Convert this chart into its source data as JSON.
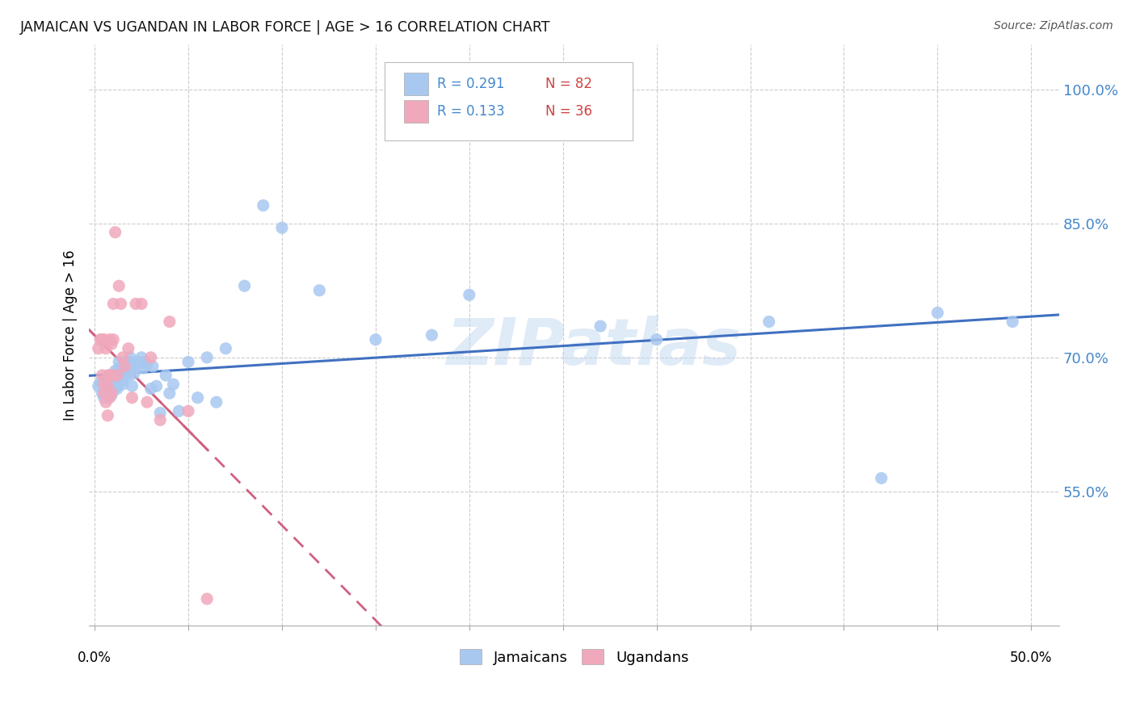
{
  "title": "JAMAICAN VS UGANDAN IN LABOR FORCE | AGE > 16 CORRELATION CHART",
  "source": "Source: ZipAtlas.com",
  "ylabel": "In Labor Force | Age > 16",
  "watermark": "ZIPatlas",
  "legend_r1": "R = 0.291",
  "legend_n1": "N = 82",
  "legend_r2": "R = 0.133",
  "legend_n2": "N = 36",
  "blue_color": "#a8c8f0",
  "pink_color": "#f0a8bc",
  "blue_line_color": "#4070c0",
  "pink_line_color": "#d06080",
  "pink_line_dash": "solid",
  "ymin": 0.4,
  "ymax": 1.05,
  "xmin": -0.003,
  "xmax": 0.515,
  "ytick_vals": [
    0.55,
    0.7,
    0.85,
    1.0
  ],
  "ytick_labels": [
    "55.0%",
    "70.0%",
    "85.0%",
    "100.0%"
  ],
  "xtick_vals": [
    0.0,
    0.05,
    0.1,
    0.15,
    0.2,
    0.25,
    0.3,
    0.35,
    0.4,
    0.45,
    0.5
  ],
  "jamaicans_x": [
    0.002,
    0.003,
    0.004,
    0.005,
    0.005,
    0.005,
    0.006,
    0.006,
    0.006,
    0.007,
    0.007,
    0.007,
    0.007,
    0.007,
    0.008,
    0.008,
    0.008,
    0.009,
    0.009,
    0.009,
    0.009,
    0.009,
    0.009,
    0.01,
    0.01,
    0.01,
    0.01,
    0.011,
    0.011,
    0.012,
    0.012,
    0.012,
    0.013,
    0.013,
    0.014,
    0.014,
    0.015,
    0.015,
    0.016,
    0.016,
    0.017,
    0.017,
    0.018,
    0.018,
    0.018,
    0.019,
    0.019,
    0.019,
    0.02,
    0.021,
    0.022,
    0.023,
    0.025,
    0.026,
    0.027,
    0.028,
    0.03,
    0.031,
    0.033,
    0.035,
    0.038,
    0.04,
    0.042,
    0.045,
    0.05,
    0.055,
    0.06,
    0.065,
    0.07,
    0.08,
    0.09,
    0.1,
    0.12,
    0.15,
    0.18,
    0.2,
    0.27,
    0.3,
    0.36,
    0.42,
    0.45,
    0.49
  ],
  "jamaicans_y": [
    0.668,
    0.672,
    0.66,
    0.668,
    0.66,
    0.655,
    0.67,
    0.675,
    0.662,
    0.668,
    0.665,
    0.67,
    0.66,
    0.675,
    0.672,
    0.668,
    0.678,
    0.67,
    0.665,
    0.672,
    0.66,
    0.668,
    0.658,
    0.68,
    0.675,
    0.67,
    0.665,
    0.685,
    0.672,
    0.678,
    0.665,
    0.668,
    0.695,
    0.688,
    0.685,
    0.68,
    0.675,
    0.67,
    0.688,
    0.682,
    0.695,
    0.688,
    0.688,
    0.68,
    0.695,
    0.7,
    0.695,
    0.688,
    0.668,
    0.682,
    0.688,
    0.695,
    0.7,
    0.688,
    0.695,
    0.692,
    0.665,
    0.69,
    0.668,
    0.638,
    0.68,
    0.66,
    0.67,
    0.64,
    0.695,
    0.655,
    0.7,
    0.65,
    0.71,
    0.78,
    0.87,
    0.845,
    0.775,
    0.72,
    0.725,
    0.77,
    0.735,
    0.72,
    0.74,
    0.565,
    0.75,
    0.74
  ],
  "ugandans_x": [
    0.002,
    0.003,
    0.004,
    0.004,
    0.005,
    0.005,
    0.005,
    0.006,
    0.006,
    0.007,
    0.007,
    0.007,
    0.008,
    0.008,
    0.008,
    0.009,
    0.009,
    0.009,
    0.01,
    0.01,
    0.011,
    0.012,
    0.013,
    0.014,
    0.015,
    0.016,
    0.018,
    0.02,
    0.022,
    0.025,
    0.028,
    0.03,
    0.035,
    0.04,
    0.05,
    0.06
  ],
  "ugandans_y": [
    0.71,
    0.72,
    0.68,
    0.72,
    0.67,
    0.66,
    0.72,
    0.65,
    0.71,
    0.68,
    0.668,
    0.635,
    0.68,
    0.655,
    0.72,
    0.68,
    0.66,
    0.715,
    0.76,
    0.72,
    0.84,
    0.68,
    0.78,
    0.76,
    0.7,
    0.69,
    0.71,
    0.655,
    0.76,
    0.76,
    0.65,
    0.7,
    0.63,
    0.74,
    0.64,
    0.43
  ]
}
